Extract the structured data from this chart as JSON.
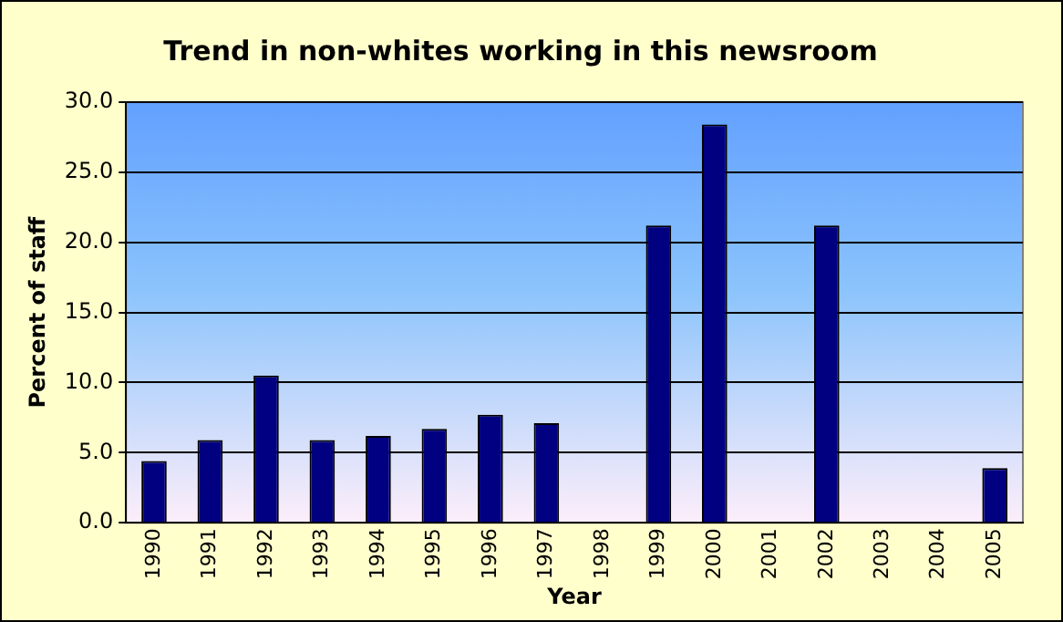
{
  "chart_data": {
    "type": "bar",
    "title": "Trend in non-whites working in this newsroom",
    "xlabel": "Year",
    "ylabel": "Percent of staff",
    "categories": [
      "1990",
      "1991",
      "1992",
      "1993",
      "1994",
      "1995",
      "1996",
      "1997",
      "1998",
      "1999",
      "2000",
      "2001",
      "2002",
      "2003",
      "2004",
      "2005"
    ],
    "values": [
      4.4,
      5.9,
      10.5,
      5.9,
      6.2,
      6.7,
      7.7,
      7.1,
      null,
      21.2,
      28.4,
      null,
      21.2,
      null,
      null,
      3.9
    ],
    "color": "#000080",
    "ylim": [
      0,
      30
    ],
    "yticks": [
      {
        "value": 0,
        "label": "0.0"
      },
      {
        "value": 5,
        "label": "5.0"
      },
      {
        "value": 10,
        "label": "10.0"
      },
      {
        "value": 15,
        "label": "15.0"
      },
      {
        "value": 20,
        "label": "20.0"
      },
      {
        "value": 25,
        "label": "25.0"
      },
      {
        "value": 30,
        "label": "30.0"
      }
    ],
    "grid": "y",
    "legend": false
  }
}
